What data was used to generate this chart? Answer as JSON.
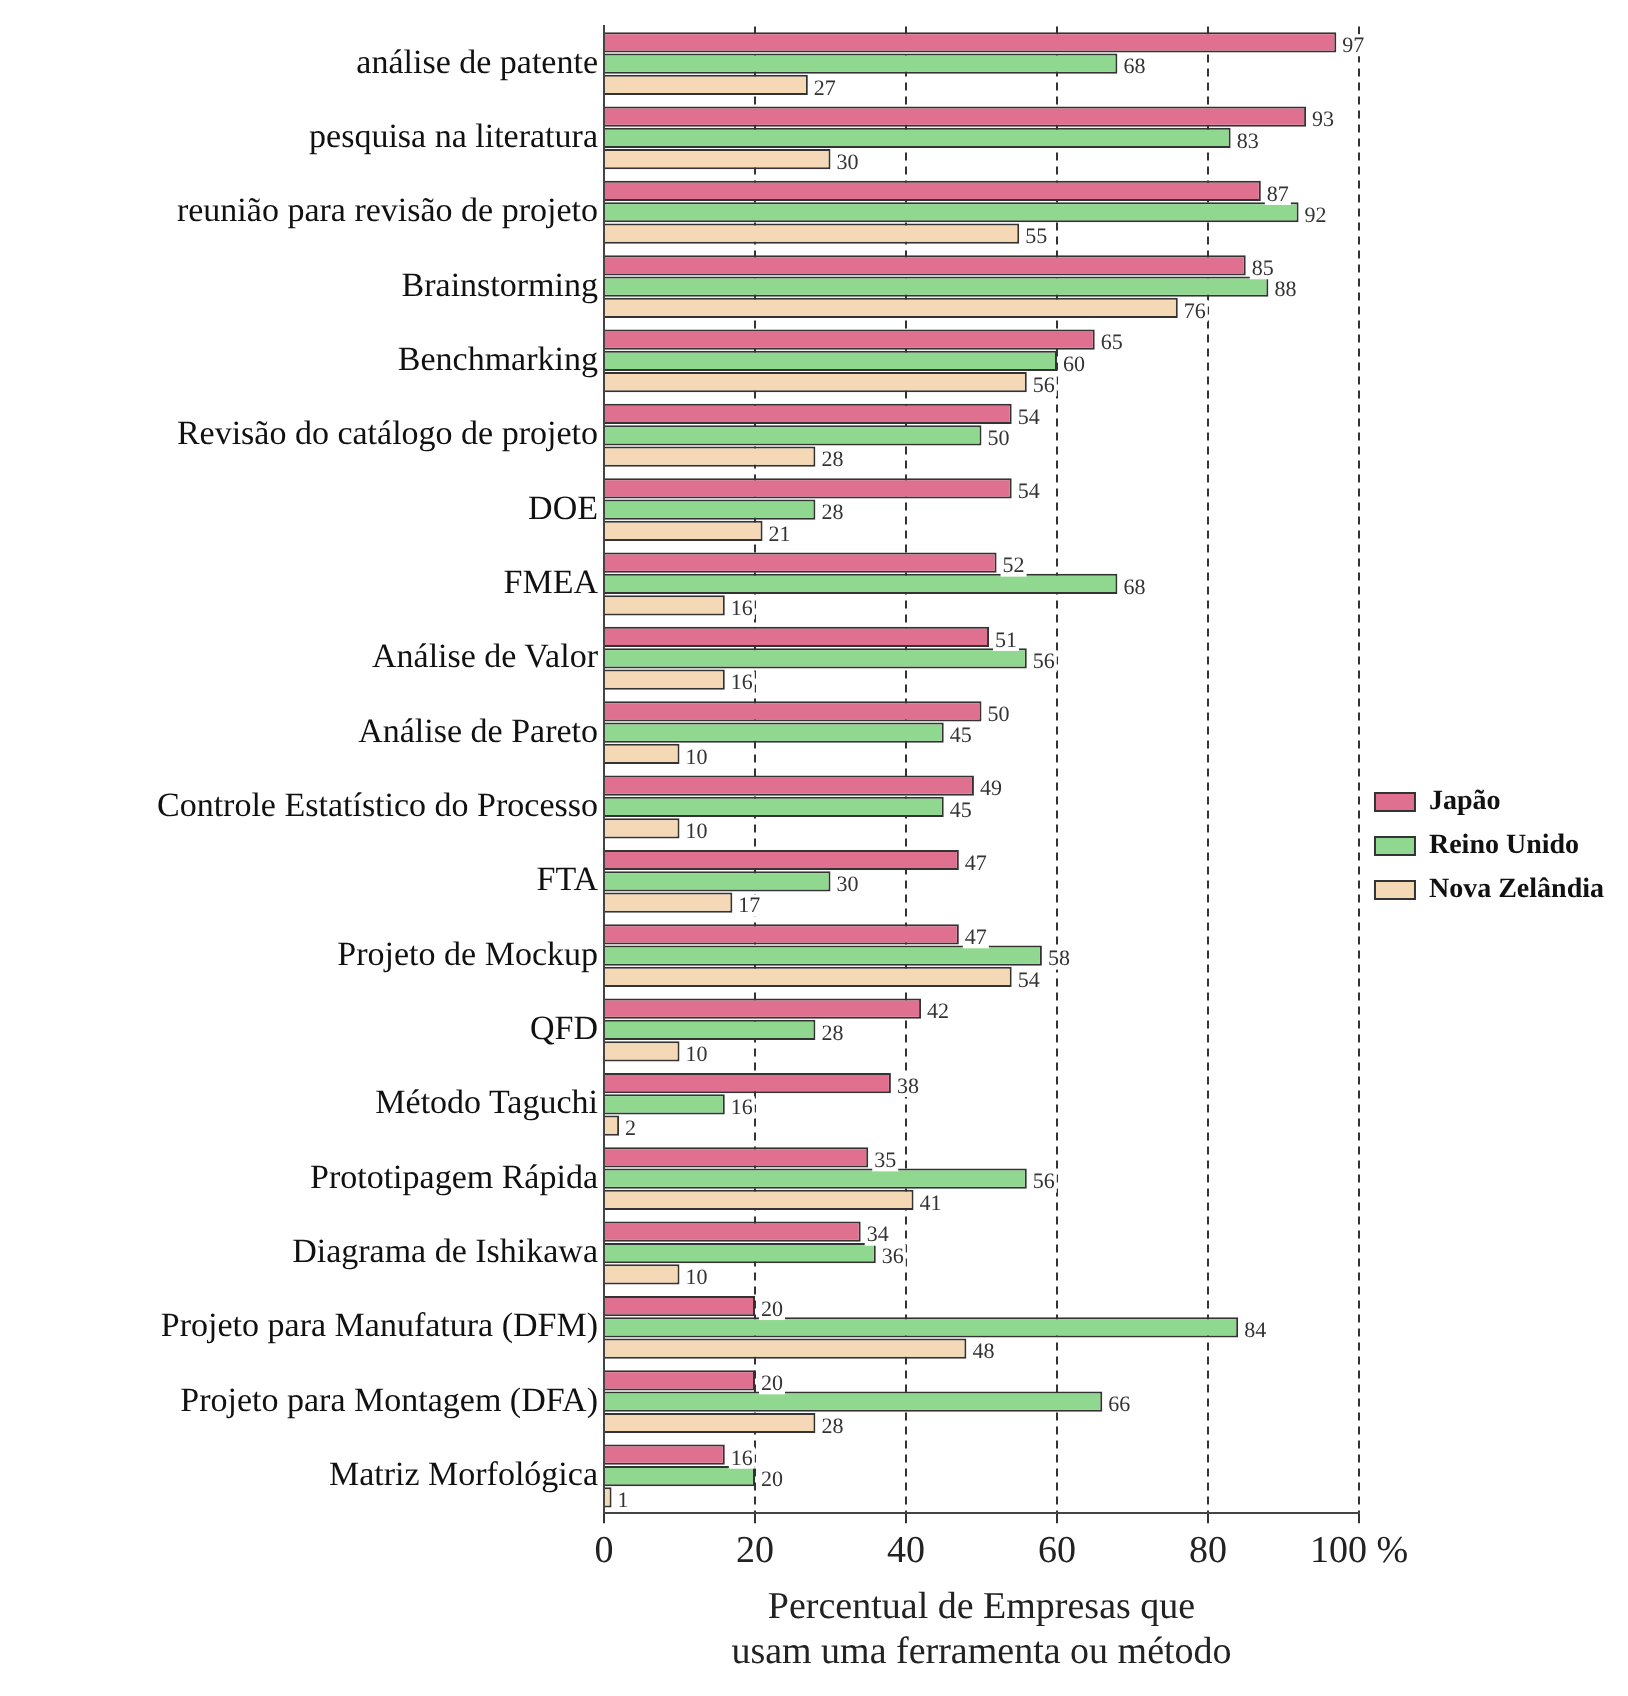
{
  "chart_data": {
    "type": "bar",
    "orientation": "horizontal",
    "xlabel": "Percentual de Empresas que\nusam uma ferramenta ou método",
    "categories": [
      "análise de patente",
      "pesquisa na literatura",
      "reunião para revisão de projeto",
      "Brainstorming",
      "Benchmarking",
      "Revisão do catálogo de projeto",
      "DOE",
      "FMEA",
      "Análise de Valor",
      "Análise de Pareto",
      "Controle Estatístico do Processo",
      "FTA",
      "Projeto de Mockup",
      "QFD",
      "Método Taguchi",
      "Prototipagem Rápida",
      "Diagrama de Ishikawa",
      "Projeto para Manufatura (DFM)",
      "Projeto para Montagem (DFA)",
      "Matriz Morfológica"
    ],
    "series": [
      {
        "name": "Japão",
        "color": "#e07090",
        "values": [
          97,
          93,
          87,
          85,
          65,
          54,
          54,
          52,
          51,
          50,
          49,
          47,
          47,
          42,
          38,
          35,
          34,
          20,
          20,
          16
        ]
      },
      {
        "name": "Reino Unido",
        "color": "#90d890",
        "values": [
          68,
          83,
          92,
          88,
          60,
          50,
          28,
          68,
          56,
          45,
          45,
          30,
          58,
          28,
          16,
          56,
          36,
          84,
          66,
          20
        ]
      },
      {
        "name": "Nova Zelândia",
        "color": "#f5d8b5",
        "values": [
          27,
          30,
          55,
          76,
          56,
          28,
          21,
          16,
          16,
          10,
          10,
          17,
          54,
          10,
          2,
          41,
          10,
          48,
          28,
          1
        ]
      }
    ],
    "xlim": [
      0,
      100
    ],
    "xticks": [
      0,
      20,
      40,
      60,
      80,
      {
        "value": 100,
        "label": "100 %"
      }
    ],
    "grid": "x",
    "legend": "right",
    "data_labels": true
  }
}
